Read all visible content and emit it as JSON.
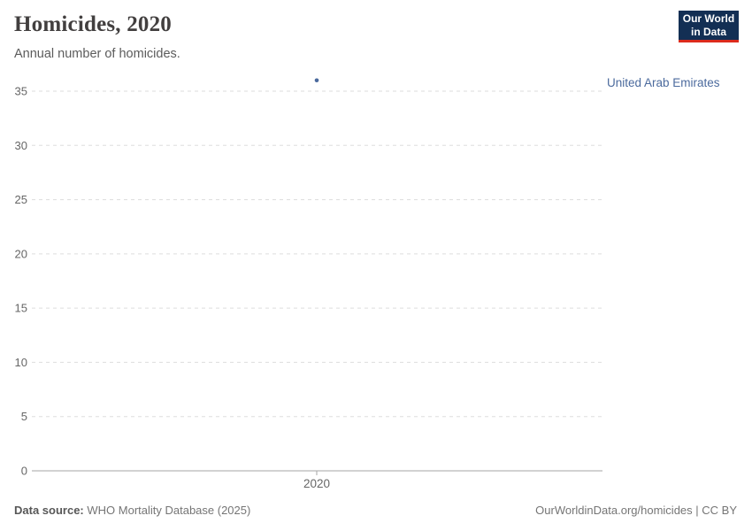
{
  "header": {
    "title": "Homicides, 2020",
    "subtitle": "Annual number of homicides.",
    "logo": {
      "line1": "Our World",
      "line2": "in Data",
      "bg_color": "#132f54",
      "accent_color": "#dc2b1c"
    }
  },
  "chart_data": {
    "type": "scatter",
    "title": "Homicides, 2020",
    "subtitle": "Annual number of homicides.",
    "x": [
      2020
    ],
    "series": [
      {
        "name": "United Arab Emirates",
        "values": [
          36
        ],
        "color": "#4b6a9d"
      }
    ],
    "xlabel": "",
    "ylabel": "",
    "ylim": [
      0,
      35
    ],
    "yticks": [
      0,
      5,
      10,
      15,
      20,
      25,
      30,
      35
    ],
    "xticks": [
      2020
    ],
    "grid": true,
    "grid_style": "dashed",
    "legend_position": "right-of-plot"
  },
  "footer": {
    "datasource_label": "Data source:",
    "datasource_value": "WHO Mortality Database (2025)",
    "link": "OurWorldinData.org/homicides | CC BY"
  },
  "colors": {
    "series_blue": "#4b6a9d",
    "gridline": "#dddddd",
    "axis_line": "#a5a5a5",
    "tick_text": "#666666"
  }
}
